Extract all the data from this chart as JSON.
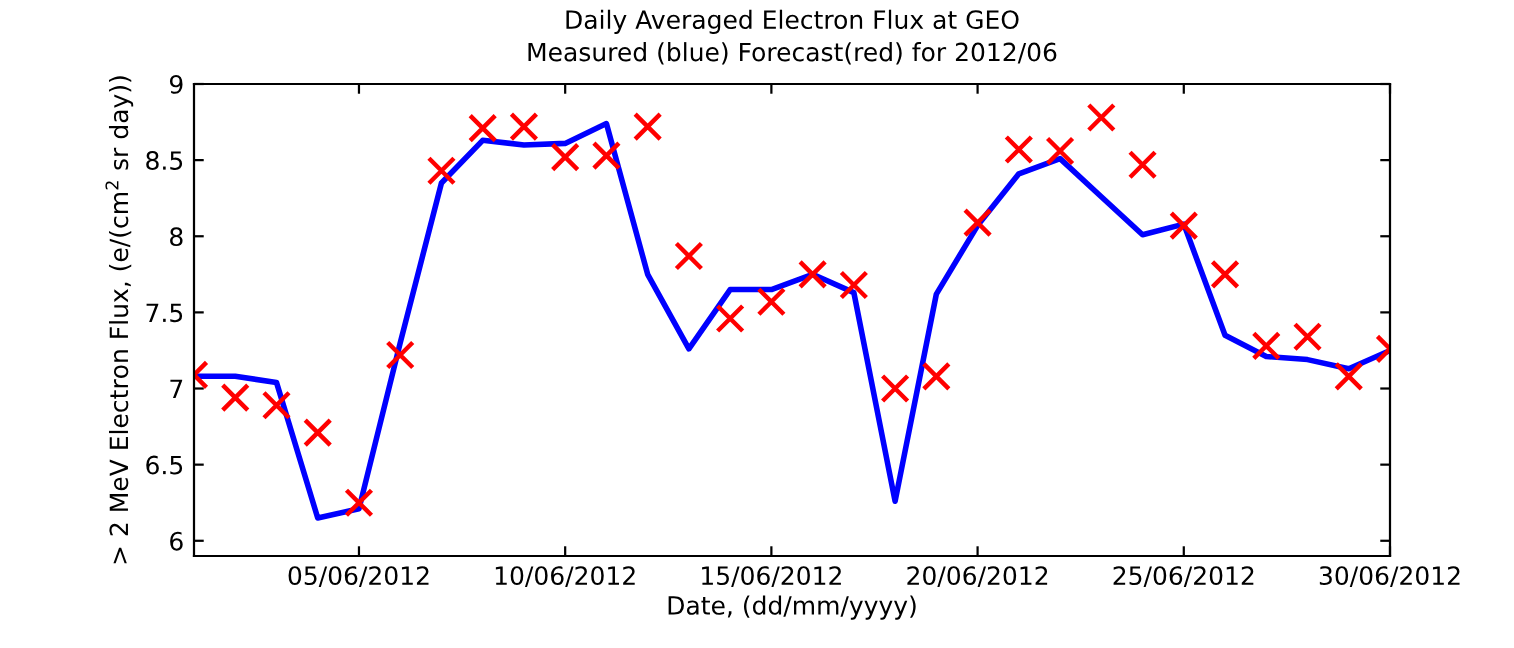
{
  "chart_data": {
    "type": "line",
    "title": "Daily Averaged Electron Flux at GEO",
    "subtitle": "Measured (blue) Forecast(red) for 2012/06",
    "xlabel": "Date, (dd/mm/yyyy)",
    "ylabel": "> 2 MeV Electron Flux, (e/(cm$^{2}$ sr day))",
    "x": [
      "2012-06-01",
      "2012-06-02",
      "2012-06-03",
      "2012-06-04",
      "2012-06-05",
      "2012-06-06",
      "2012-06-07",
      "2012-06-08",
      "2012-06-09",
      "2012-06-10",
      "2012-06-11",
      "2012-06-12",
      "2012-06-13",
      "2012-06-14",
      "2012-06-15",
      "2012-06-16",
      "2012-06-17",
      "2012-06-18",
      "2012-06-19",
      "2012-06-20",
      "2012-06-21",
      "2012-06-22",
      "2012-06-23",
      "2012-06-24",
      "2012-06-25",
      "2012-06-26",
      "2012-06-27",
      "2012-06-28",
      "2012-06-29",
      "2012-06-30"
    ],
    "series": [
      {
        "color": "#0000ff",
        "line_style": "solid",
        "marker": "none",
        "values": [
          7.08,
          7.08,
          7.04,
          6.15,
          6.21,
          7.3,
          8.35,
          8.63,
          8.6,
          8.61,
          8.74,
          7.75,
          7.26,
          7.65,
          7.65,
          7.75,
          7.63,
          6.26,
          7.62,
          8.07,
          8.41,
          8.51,
          8.26,
          8.01,
          8.08,
          7.35,
          7.21,
          7.19,
          7.13,
          7.25
        ]
      },
      {
        "type": "scatter",
        "color": "#ff0000",
        "marker": "cross",
        "values": [
          7.09,
          6.94,
          6.89,
          6.71,
          6.25,
          7.22,
          8.43,
          8.71,
          8.72,
          8.52,
          8.53,
          8.72,
          7.87,
          7.46,
          7.57,
          7.75,
          7.68,
          7.0,
          7.08,
          8.09,
          8.57,
          8.56,
          8.78,
          8.47,
          8.07,
          7.75,
          7.28,
          7.34,
          7.08,
          7.26
        ]
      }
    ],
    "xlim": [
      "2012-06-01",
      "2012-06-30"
    ],
    "xticks": [
      {
        "value": "2012-06-05",
        "label": "05/06/2012"
      },
      {
        "value": "2012-06-10",
        "label": "10/06/2012"
      },
      {
        "value": "2012-06-15",
        "label": "15/06/2012"
      },
      {
        "value": "2012-06-20",
        "label": "20/06/2012"
      },
      {
        "value": "2012-06-25",
        "label": "25/06/2012"
      },
      {
        "value": "2012-06-30",
        "label": "30/06/2012"
      }
    ],
    "ylim": [
      5.9,
      9
    ],
    "yticks": [
      6,
      6.5,
      7,
      7.5,
      8,
      8.5,
      9
    ],
    "grid": false,
    "legend": false
  }
}
